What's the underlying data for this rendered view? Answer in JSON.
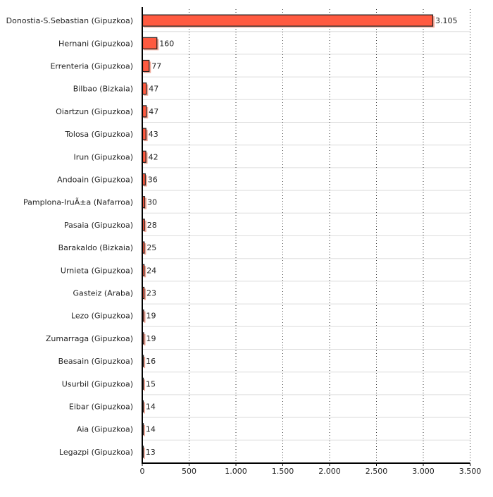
{
  "chart_data": {
    "type": "bar",
    "orientation": "horizontal",
    "categories": [
      "Donostia-S.Sebastian (Gipuzkoa)",
      "Hernani (Gipuzkoa)",
      "Errenteria (Gipuzkoa)",
      "Bilbao (Bizkaia)",
      "Oiartzun (Gipuzkoa)",
      "Tolosa (Gipuzkoa)",
      "Irun (Gipuzkoa)",
      "Andoain (Gipuzkoa)",
      "Pamplona-IruÃ±a (Nafarroa)",
      "Pasaia (Gipuzkoa)",
      "Barakaldo (Bizkaia)",
      "Urnieta (Gipuzkoa)",
      "Gasteiz (Araba)",
      "Lezo (Gipuzkoa)",
      "Zumarraga (Gipuzkoa)",
      "Beasain (Gipuzkoa)",
      "Usurbil (Gipuzkoa)",
      "Eibar (Gipuzkoa)",
      "Aia (Gipuzkoa)",
      "Legazpi (Gipuzkoa)"
    ],
    "values": [
      3105,
      160,
      77,
      47,
      47,
      43,
      42,
      36,
      30,
      28,
      25,
      24,
      23,
      19,
      19,
      16,
      15,
      14,
      14,
      13
    ],
    "value_labels": [
      "3.105",
      "160",
      "77",
      "47",
      "47",
      "43",
      "42",
      "36",
      "30",
      "28",
      "25",
      "24",
      "23",
      "19",
      "19",
      "16",
      "15",
      "14",
      "14",
      "13"
    ],
    "xlim": [
      0,
      3500
    ],
    "xticks": [
      0,
      500,
      1000,
      1500,
      2000,
      2500,
      3000,
      3500
    ],
    "xtick_labels": [
      "0",
      "500",
      "1.000",
      "1.500",
      "2.000",
      "2.500",
      "3.000",
      "3.500"
    ],
    "grid": true,
    "bar_color": "#ff5a40",
    "title": "",
    "xlabel": "",
    "ylabel": ""
  }
}
